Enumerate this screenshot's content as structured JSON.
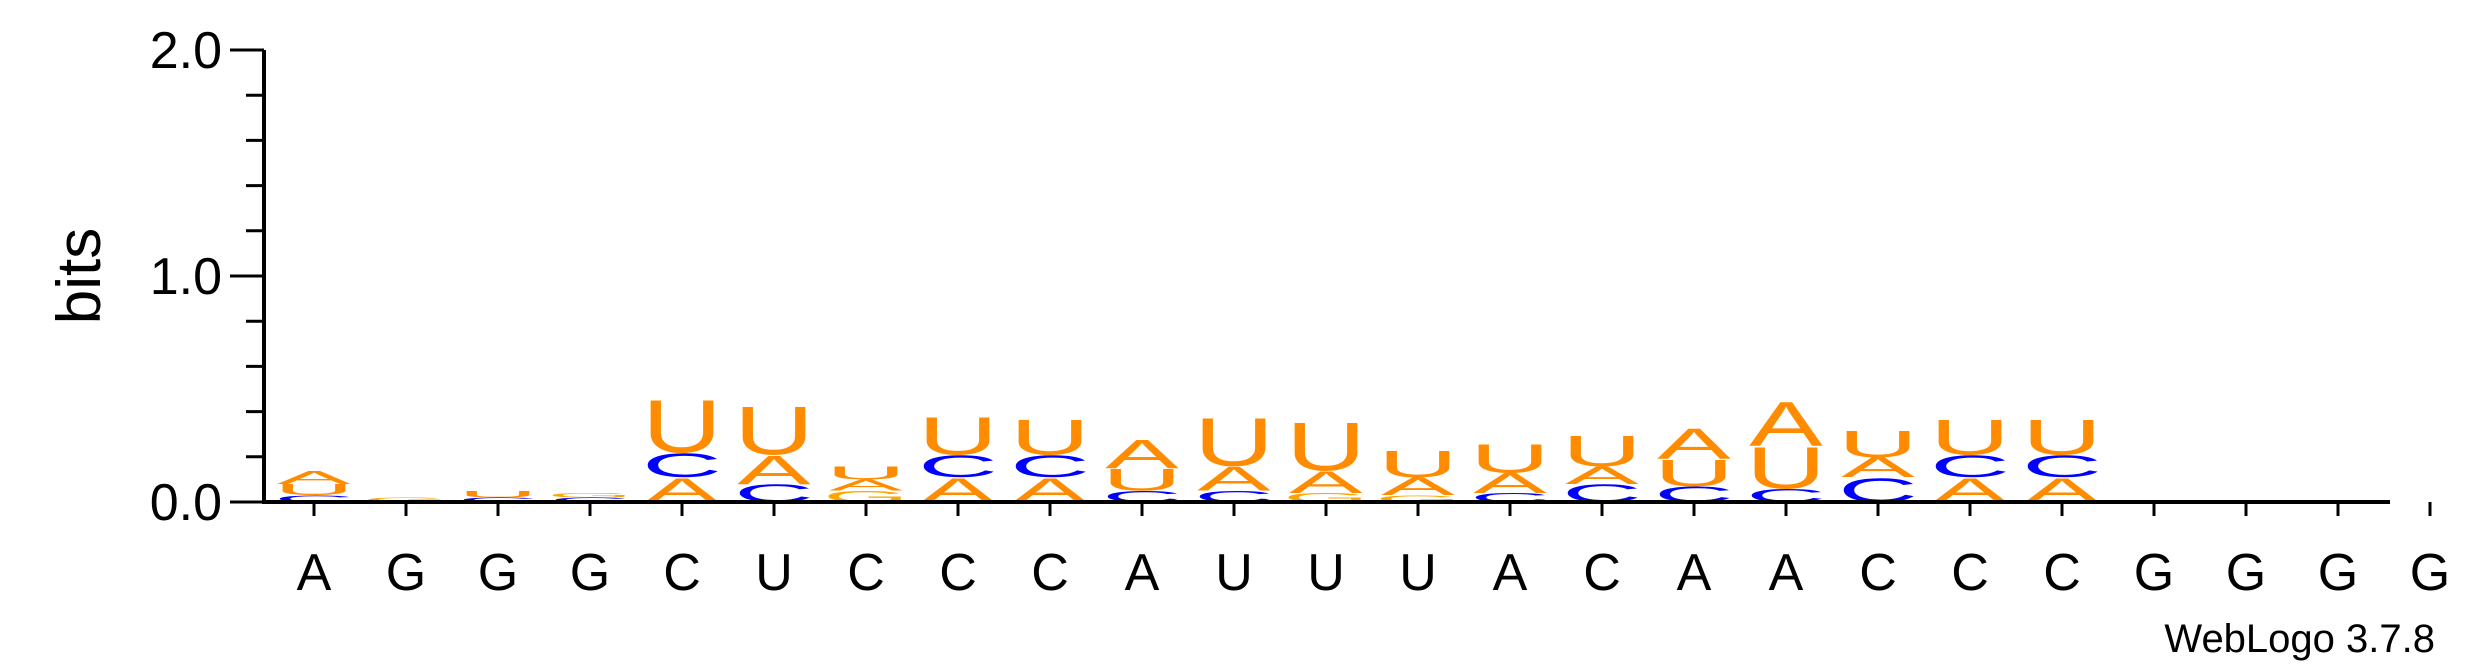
{
  "chart_data": {
    "type": "sequence-logo",
    "ylabel": "bits",
    "ylim": [
      0,
      2
    ],
    "yticks": [
      {
        "value": 0,
        "label": "0.0"
      },
      {
        "value": 1,
        "label": "1.0"
      },
      {
        "value": 2,
        "label": "2.0"
      }
    ],
    "xlabels": [
      "A",
      "G",
      "G",
      "G",
      "C",
      "U",
      "C",
      "C",
      "C",
      "A",
      "U",
      "U",
      "U",
      "A",
      "C",
      "A",
      "A",
      "C",
      "C",
      "C",
      "G",
      "G",
      "G",
      "G"
    ],
    "colors": {
      "A": "#ff8c00",
      "C": "#0000ff",
      "G": "#ffa500",
      "U": "#ff8c00"
    },
    "stacks": [
      [
        {
          "l": "C",
          "h": 0.03
        },
        {
          "l": "U",
          "h": 0.05
        },
        {
          "l": "A",
          "h": 0.06
        }
      ],
      [
        {
          "l": "G",
          "h": 0.02
        }
      ],
      [
        {
          "l": "C",
          "h": 0.02
        },
        {
          "l": "U",
          "h": 0.03
        }
      ],
      [
        {
          "l": "C",
          "h": 0.02
        },
        {
          "l": "G",
          "h": 0.02
        }
      ],
      [
        {
          "l": "A",
          "h": 0.11
        },
        {
          "l": "C",
          "h": 0.11
        },
        {
          "l": "U",
          "h": 0.24
        }
      ],
      [
        {
          "l": "C",
          "h": 0.08
        },
        {
          "l": "A",
          "h": 0.13
        },
        {
          "l": "U",
          "h": 0.22
        }
      ],
      [
        {
          "l": "G",
          "h": 0.05
        },
        {
          "l": "A",
          "h": 0.05
        },
        {
          "l": "U",
          "h": 0.06
        }
      ],
      [
        {
          "l": "A",
          "h": 0.11
        },
        {
          "l": "C",
          "h": 0.1
        },
        {
          "l": "U",
          "h": 0.17
        }
      ],
      [
        {
          "l": "A",
          "h": 0.11
        },
        {
          "l": "C",
          "h": 0.1
        },
        {
          "l": "U",
          "h": 0.16
        }
      ],
      [
        {
          "l": "C",
          "h": 0.05
        },
        {
          "l": "U",
          "h": 0.1
        },
        {
          "l": "A",
          "h": 0.13
        }
      ],
      [
        {
          "l": "C",
          "h": 0.05
        },
        {
          "l": "A",
          "h": 0.11
        },
        {
          "l": "U",
          "h": 0.22
        }
      ],
      [
        {
          "l": "G",
          "h": 0.04
        },
        {
          "l": "A",
          "h": 0.1
        },
        {
          "l": "U",
          "h": 0.22
        }
      ],
      [
        {
          "l": "G",
          "h": 0.03
        },
        {
          "l": "A",
          "h": 0.08
        },
        {
          "l": "U",
          "h": 0.12
        }
      ],
      [
        {
          "l": "C",
          "h": 0.04
        },
        {
          "l": "A",
          "h": 0.09
        },
        {
          "l": "U",
          "h": 0.13
        }
      ],
      [
        {
          "l": "C",
          "h": 0.08
        },
        {
          "l": "A",
          "h": 0.08
        },
        {
          "l": "U",
          "h": 0.14
        }
      ],
      [
        {
          "l": "C",
          "h": 0.07
        },
        {
          "l": "U",
          "h": 0.12
        },
        {
          "l": "A",
          "h": 0.14
        }
      ],
      [
        {
          "l": "C",
          "h": 0.06
        },
        {
          "l": "U",
          "h": 0.19
        },
        {
          "l": "A",
          "h": 0.2
        }
      ],
      [
        {
          "l": "C",
          "h": 0.11
        },
        {
          "l": "A",
          "h": 0.09
        },
        {
          "l": "U",
          "h": 0.12
        }
      ],
      [
        {
          "l": "A",
          "h": 0.11
        },
        {
          "l": "C",
          "h": 0.1
        },
        {
          "l": "U",
          "h": 0.16
        }
      ],
      [
        {
          "l": "A",
          "h": 0.11
        },
        {
          "l": "C",
          "h": 0.1
        },
        {
          "l": "U",
          "h": 0.16
        }
      ],
      [],
      [],
      [],
      []
    ]
  },
  "credit": "WebLogo 3.7.8"
}
